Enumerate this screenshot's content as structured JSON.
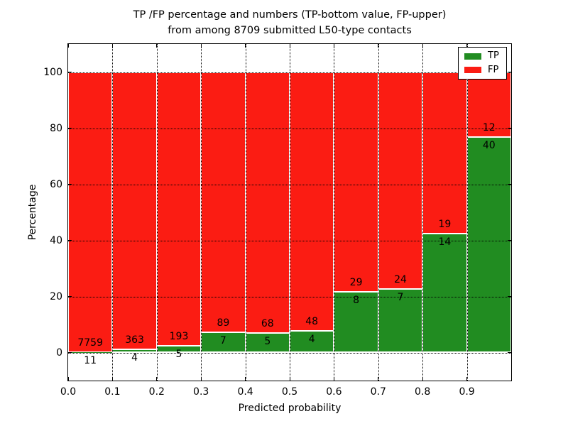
{
  "title": {
    "line1": "TP /FP percentage and numbers (TP-bottom value, FP-upper)",
    "line2": "from among 8709 submitted L50-type contacts"
  },
  "axes": {
    "xlabel": "Predicted probability",
    "ylabel": "Percentage",
    "yticks": [
      0,
      20,
      40,
      60,
      80,
      100
    ],
    "xticks": [
      "0.0",
      "0.1",
      "0.2",
      "0.3",
      "0.4",
      "0.5",
      "0.6",
      "0.7",
      "0.8",
      "0.9"
    ]
  },
  "legend": {
    "position": "upper-right",
    "items": [
      {
        "label": "TP",
        "color": "#218c21"
      },
      {
        "label": "FP",
        "color": "#fb1c13"
      }
    ]
  },
  "chart_data": {
    "type": "bar",
    "stacked": true,
    "normalized_to_percent": 100,
    "title": "TP /FP percentage and numbers (TP-bottom value, FP-upper) from among 8709 submitted L50-type contacts",
    "xlabel": "Predicted probability",
    "ylabel": "Percentage",
    "xlim": [
      0,
      1
    ],
    "ylim": [
      -10,
      110
    ],
    "grid": "dotted",
    "legend_position": "upper right",
    "bar_edge_color": "#ffffff",
    "bin_edges": [
      0.0,
      0.1,
      0.2,
      0.3,
      0.4,
      0.5,
      0.6,
      0.7,
      0.8,
      0.9,
      1.0
    ],
    "series": [
      {
        "name": "TP",
        "color": "#218c21",
        "counts": [
          11,
          4,
          5,
          7,
          5,
          4,
          8,
          7,
          14,
          40
        ]
      },
      {
        "name": "FP",
        "color": "#fb1c13",
        "counts": [
          7759,
          363,
          193,
          89,
          68,
          48,
          29,
          24,
          19,
          12
        ]
      }
    ],
    "tp_percent_by_bin": [
      0.14,
      1.09,
      2.53,
      7.29,
      6.85,
      7.69,
      21.62,
      22.58,
      42.42,
      76.92
    ],
    "total_contacts": 8709
  }
}
